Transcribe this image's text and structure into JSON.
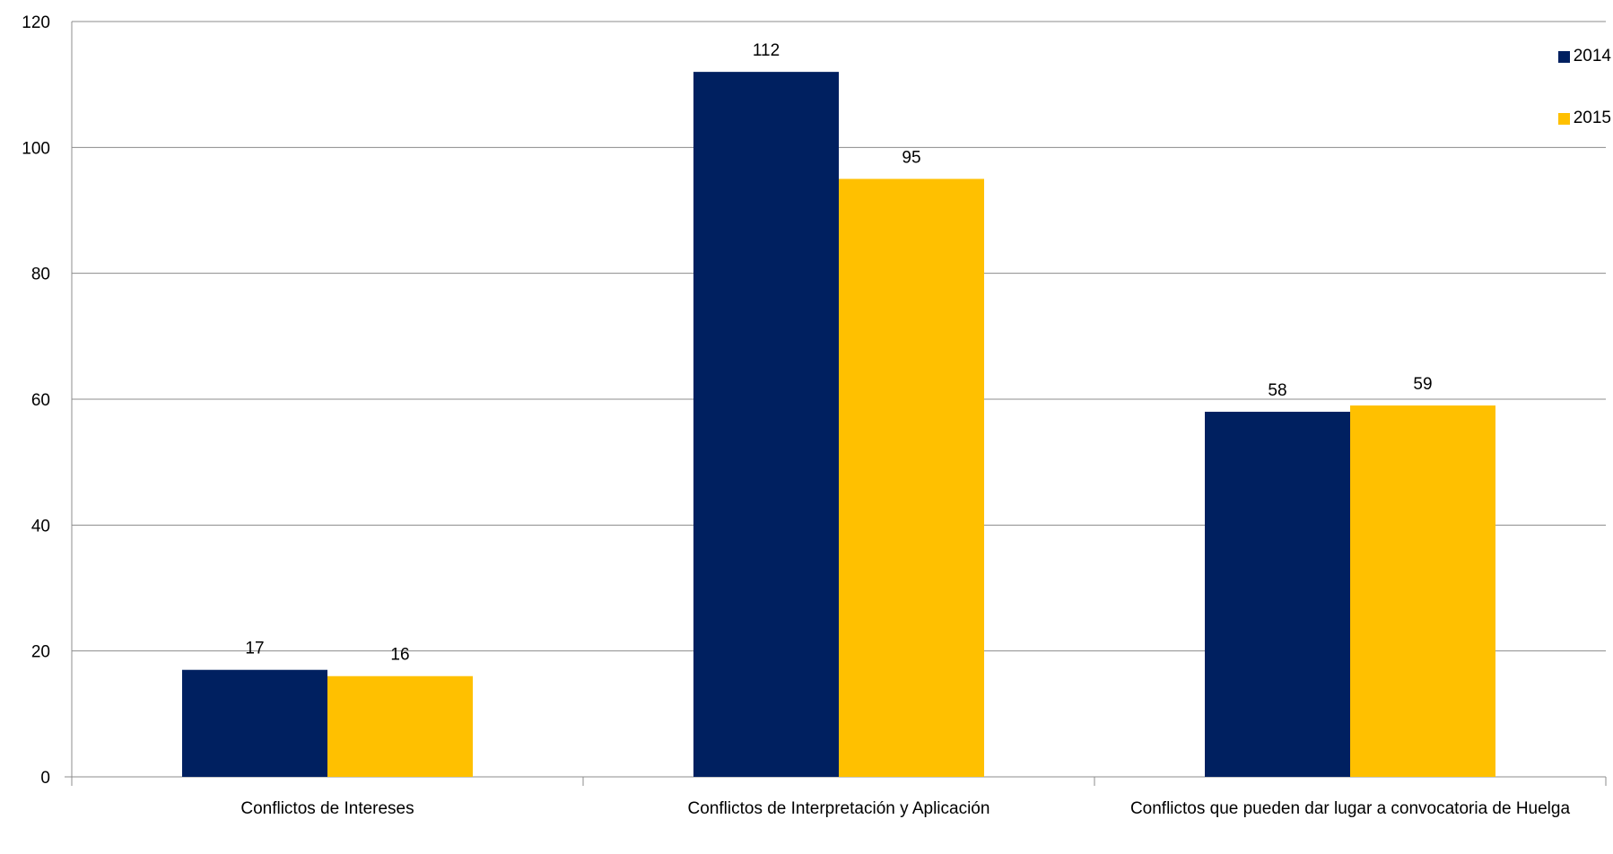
{
  "chart_data": {
    "type": "bar",
    "title": "",
    "xlabel": "",
    "ylabel": "",
    "ylim": [
      0,
      120
    ],
    "yticks": [
      "0",
      "20",
      "40",
      "60",
      "80",
      "100",
      "120"
    ],
    "categories": [
      "Conflictos de Intereses",
      "Conflictos de Interpretación y Aplicación",
      "Conflictos que pueden dar lugar a convocatoria de Huelga"
    ],
    "series": [
      {
        "name": "2014",
        "values": [
          17,
          112,
          58
        ],
        "color": "#002060"
      },
      {
        "name": "2015",
        "values": [
          16,
          95,
          59
        ],
        "color": "#FFC000"
      }
    ],
    "grid": true,
    "legend_position": "top-right",
    "data_labels": true
  }
}
